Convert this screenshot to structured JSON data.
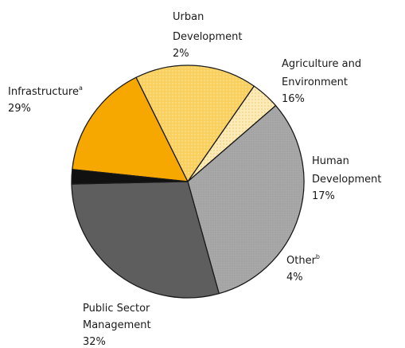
{
  "chart_data": {
    "type": "pie",
    "title": "",
    "slices": [
      {
        "name": "Agriculture and Environment",
        "value": 16,
        "value_label": "16%",
        "color": "#F7A800",
        "pattern": "solid"
      },
      {
        "name": "Human Development",
        "value": 17,
        "value_label": "17%",
        "color": "#F9CF5E",
        "pattern": "dotted"
      },
      {
        "name": "Other",
        "footnote": "b",
        "value": 4,
        "value_label": "4%",
        "color": "#FBEAB0",
        "pattern": "dotted-light"
      },
      {
        "name": "Public Sector Management",
        "value": 32,
        "value_label": "32%",
        "color": "#A6A6A6",
        "pattern": "dotted-gray"
      },
      {
        "name": "Infrastructure",
        "footnote": "a",
        "value": 29,
        "value_label": "29%",
        "color": "#5E5E5E",
        "pattern": "solid"
      },
      {
        "name": "Urban Development",
        "value": 2,
        "value_label": "2%",
        "color": "#111111",
        "pattern": "solid"
      }
    ],
    "label_lines": {
      "agriculture": [
        "Agriculture and",
        "Environment"
      ],
      "human": [
        "Human",
        "Development"
      ],
      "other": [
        "Other"
      ],
      "public": [
        "Public Sector",
        "Management"
      ],
      "infrastructure": [
        "Infrastructure"
      ],
      "urban": [
        "Urban",
        "Development"
      ]
    }
  }
}
